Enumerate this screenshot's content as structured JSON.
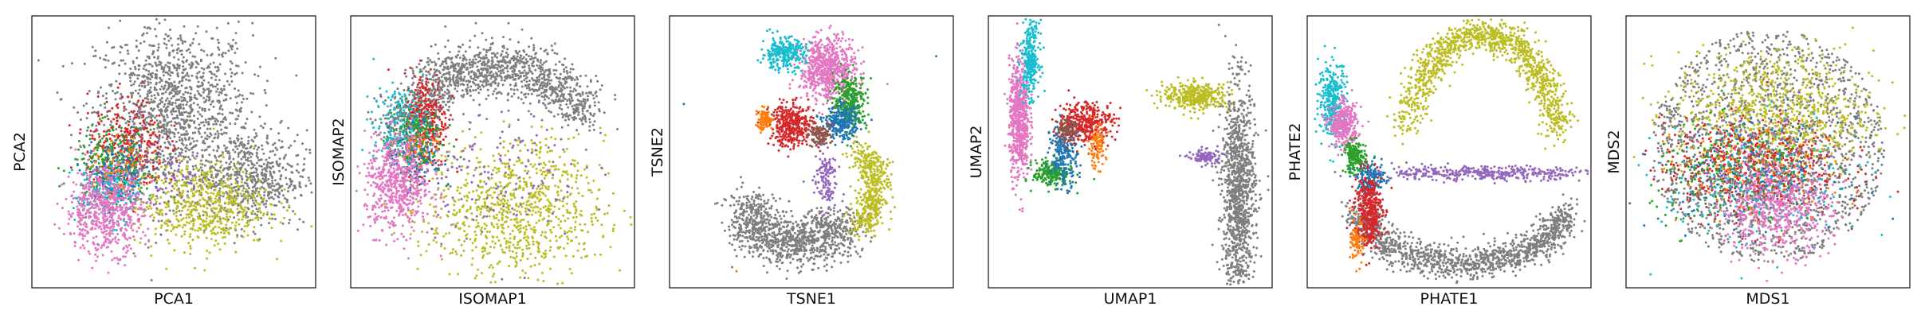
{
  "colors": {
    "blue": "#1f77b4",
    "orange": "#ff7f0e",
    "green": "#2ca02c",
    "red": "#d62728",
    "purple": "#9467bd",
    "pink": "#e377c2",
    "gray": "#7f7f7f",
    "olive": "#bcbd22",
    "cyan": "#17becf",
    "peach": "#ffbb78",
    "light-blue": "#aec7e8"
  },
  "chart_data": [
    {
      "type": "scatter",
      "name": "PCA",
      "xlabel": "PCA1",
      "ylabel": "PCA2",
      "ticks": "none",
      "grid": false,
      "legend": "none",
      "xlim": [
        0,
        100
      ],
      "ylim": [
        0,
        100
      ],
      "clusters": [
        {
          "color": "gray",
          "center": [
            50,
            66
          ],
          "spread": [
            14,
            16
          ],
          "count": 1300
        },
        {
          "color": "gray",
          "center": [
            78,
            40
          ],
          "spread": [
            10,
            9
          ],
          "count": 600
        },
        {
          "color": "olive",
          "center": [
            60,
            30
          ],
          "spread": [
            12,
            8
          ],
          "count": 600
        },
        {
          "color": "red",
          "center": [
            33,
            52
          ],
          "spread": [
            7,
            9
          ],
          "count": 330
        },
        {
          "color": "green",
          "center": [
            28,
            45
          ],
          "spread": [
            7,
            7
          ],
          "count": 260
        },
        {
          "color": "blue",
          "center": [
            30,
            40
          ],
          "spread": [
            6,
            7
          ],
          "count": 180
        },
        {
          "color": "purple",
          "center": [
            45,
            42
          ],
          "spread": [
            10,
            10
          ],
          "count": 110
        },
        {
          "color": "cyan",
          "center": [
            26,
            35
          ],
          "spread": [
            6,
            6
          ],
          "count": 150
        },
        {
          "color": "orange",
          "center": [
            32,
            44
          ],
          "spread": [
            5,
            5
          ],
          "count": 60
        },
        {
          "color": "pink",
          "center": [
            25,
            28
          ],
          "spread": [
            7,
            8
          ],
          "count": 620
        }
      ]
    },
    {
      "type": "scatter",
      "name": "ISOMAP",
      "xlabel": "ISOMAP1",
      "ylabel": "ISOMAP2",
      "ticks": "none",
      "grid": false,
      "legend": "none",
      "xlim": [
        0,
        100
      ],
      "ylim": [
        0,
        100
      ],
      "clusters": [
        {
          "color": "gray",
          "arc": {
            "cx": 52,
            "cy": 40,
            "rx": 38,
            "ry": 42,
            "from": 35,
            "to": 160,
            "width": 5
          },
          "count": 1400
        },
        {
          "color": "olive",
          "center": [
            58,
            28
          ],
          "spread": [
            16,
            13
          ],
          "count": 900
        },
        {
          "color": "red",
          "center": [
            26,
            62
          ],
          "spread": [
            4,
            9
          ],
          "count": 320
        },
        {
          "color": "cyan",
          "center": [
            17,
            60
          ],
          "spread": [
            5,
            7
          ],
          "count": 200
        },
        {
          "color": "green",
          "center": [
            22,
            55
          ],
          "spread": [
            5,
            7
          ],
          "count": 160
        },
        {
          "color": "blue",
          "center": [
            22,
            48
          ],
          "spread": [
            5,
            6
          ],
          "count": 120
        },
        {
          "color": "purple",
          "center": [
            52,
            45
          ],
          "spread": [
            15,
            14
          ],
          "count": 160
        },
        {
          "color": "orange",
          "center": [
            24,
            52
          ],
          "spread": [
            4,
            4
          ],
          "count": 40
        },
        {
          "color": "pink",
          "center": [
            16,
            38
          ],
          "spread": [
            6,
            9
          ],
          "count": 620
        }
      ]
    },
    {
      "type": "scatter",
      "name": "TSNE",
      "xlabel": "TSNE1",
      "ylabel": "TSNE2",
      "ticks": "none",
      "grid": false,
      "legend": "none",
      "xlim": [
        0,
        100
      ],
      "ylim": [
        0,
        100
      ],
      "clusters": [
        {
          "color": "pink",
          "center": [
            56,
            81
          ],
          "spread": [
            5,
            6
          ],
          "count": 700
        },
        {
          "color": "cyan",
          "center": [
            40,
            87
          ],
          "spread": [
            4,
            3
          ],
          "count": 280
        },
        {
          "color": "green",
          "center": [
            64,
            69
          ],
          "spread": [
            3,
            5
          ],
          "count": 330
        },
        {
          "color": "blue",
          "center": [
            61,
            61
          ],
          "spread": [
            3,
            3
          ],
          "count": 260
        },
        {
          "color": "red",
          "center": [
            43,
            60
          ],
          "spread": [
            4,
            4
          ],
          "count": 380
        },
        {
          "color": "orange",
          "center": [
            33,
            62
          ],
          "spread": [
            1.5,
            2
          ],
          "count": 90
        },
        {
          "color": "brown",
          "hex": "#8c564b",
          "center": [
            53,
            56
          ],
          "spread": [
            2,
            2
          ],
          "count": 110
        },
        {
          "color": "gray",
          "arc": {
            "cx": 46,
            "cy": 28,
            "rx": 18,
            "ry": 12,
            "from": 180,
            "to": 330,
            "width": 5
          },
          "count": 1100
        },
        {
          "color": "olive",
          "arc": {
            "cx": 66,
            "cy": 36,
            "rx": 7,
            "ry": 13,
            "from": -80,
            "to": 80,
            "width": 3
          },
          "count": 500
        },
        {
          "color": "purple",
          "center": [
            55,
            40
          ],
          "spread": [
            2,
            6
          ],
          "count": 130
        }
      ],
      "outliers": [
        {
          "color": "blue",
          "x": 4,
          "y": 68
        },
        {
          "color": "green",
          "x": 95,
          "y": 86
        },
        {
          "color": "orange",
          "x": 23,
          "y": 5
        }
      ]
    },
    {
      "type": "scatter",
      "name": "UMAP",
      "xlabel": "UMAP1",
      "ylabel": "UMAP2",
      "ticks": "none",
      "grid": false,
      "legend": "none",
      "xlim": [
        0,
        100
      ],
      "ylim": [
        0,
        100
      ],
      "clusters": [
        {
          "color": "pink",
          "center": [
            10,
            62
          ],
          "spread": [
            1.8,
            11
          ],
          "count": 650
        },
        {
          "color": "cyan",
          "center": [
            14,
            85
          ],
          "spread": [
            1.6,
            7
          ],
          "count": 280
        },
        {
          "color": "green",
          "center": [
            22,
            42
          ],
          "spread": [
            3.5,
            2.5
          ],
          "count": 230
        },
        {
          "color": "blue",
          "center": [
            26,
            49
          ],
          "spread": [
            2.5,
            6
          ],
          "count": 220
        },
        {
          "color": "red",
          "center": [
            34,
            61
          ],
          "spread": [
            5,
            4
          ],
          "count": 370
        },
        {
          "color": "orange",
          "center": [
            38,
            52
          ],
          "spread": [
            1.6,
            4
          ],
          "count": 100
        },
        {
          "color": "brown",
          "hex": "#8c564b",
          "center": [
            27,
            58
          ],
          "spread": [
            2,
            2
          ],
          "count": 90
        },
        {
          "color": "olive",
          "center": [
            74,
            71
          ],
          "spread": [
            6,
            2.5
          ],
          "count": 380
        },
        {
          "color": "gray",
          "center": [
            89,
            34
          ],
          "spread": [
            3,
            20
          ],
          "count": 1150
        },
        {
          "color": "purple",
          "center": [
            77,
            48
          ],
          "spread": [
            3,
            1.5
          ],
          "count": 100
        }
      ]
    },
    {
      "type": "scatter",
      "name": "PHATE",
      "xlabel": "PHATE1",
      "ylabel": "PHATE2",
      "ticks": "none",
      "grid": false,
      "legend": "none",
      "xlim": [
        0,
        100
      ],
      "ylim": [
        0,
        100
      ],
      "clusters": [
        {
          "color": "olive",
          "arc": {
            "cx": 62,
            "cy": 48,
            "rx": 28,
            "ry": 46,
            "from": 10,
            "to": 165,
            "width": 3
          },
          "count": 1200
        },
        {
          "color": "gray",
          "arc": {
            "cx": 55,
            "cy": 32,
            "rx": 38,
            "ry": 24,
            "from": 190,
            "to": 350,
            "width": 3
          },
          "count": 1300
        },
        {
          "color": "purple",
          "center": [
            62,
            42
          ],
          "spread": [
            22,
            1.3
          ],
          "count": 420
        },
        {
          "color": "cyan",
          "center": [
            8,
            70
          ],
          "spread": [
            2.5,
            7
          ],
          "count": 300
        },
        {
          "color": "pink",
          "center": [
            12,
            60
          ],
          "spread": [
            2.5,
            4
          ],
          "count": 350
        },
        {
          "color": "green",
          "center": [
            16,
            48
          ],
          "spread": [
            2,
            3
          ],
          "count": 200
        },
        {
          "color": "blue",
          "center": [
            22,
            40
          ],
          "spread": [
            2.5,
            3
          ],
          "count": 150
        },
        {
          "color": "red",
          "center": [
            21,
            28
          ],
          "spread": [
            2.5,
            7
          ],
          "count": 400
        },
        {
          "color": "orange",
          "center": [
            17,
            16
          ],
          "spread": [
            1.2,
            4
          ],
          "count": 90
        }
      ]
    },
    {
      "type": "scatter",
      "name": "MDS",
      "xlabel": "MDS1",
      "ylabel": "MDS2",
      "ticks": "none",
      "grid": false,
      "legend": "none",
      "xlim": [
        0,
        100
      ],
      "ylim": [
        0,
        100
      ],
      "clusters": [
        {
          "color": "gray",
          "disk": {
            "cx": 50,
            "cy": 52,
            "r": 42
          },
          "count": 1600
        },
        {
          "color": "olive",
          "center": [
            52,
            64
          ],
          "spread": [
            18,
            12
          ],
          "count": 900
        },
        {
          "color": "red",
          "center": [
            44,
            44
          ],
          "spread": [
            16,
            9
          ],
          "count": 600
        },
        {
          "color": "green",
          "center": [
            40,
            40
          ],
          "spread": [
            16,
            10
          ],
          "count": 250
        },
        {
          "color": "blue",
          "center": [
            44,
            42
          ],
          "spread": [
            16,
            10
          ],
          "count": 220
        },
        {
          "color": "cyan",
          "center": [
            48,
            36
          ],
          "spread": [
            18,
            12
          ],
          "count": 220
        },
        {
          "color": "orange",
          "center": [
            46,
            42
          ],
          "spread": [
            15,
            10
          ],
          "count": 140
        },
        {
          "color": "purple",
          "center": [
            50,
            48
          ],
          "spread": [
            16,
            11
          ],
          "count": 150
        },
        {
          "color": "pink",
          "center": [
            53,
            28
          ],
          "spread": [
            10,
            8
          ],
          "count": 550
        }
      ]
    }
  ]
}
